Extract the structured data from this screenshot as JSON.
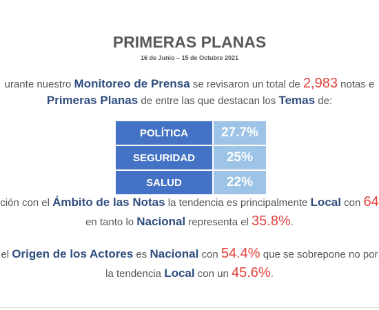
{
  "header": {
    "title": "PRIMERAS PLANAS",
    "subtitle": "16 de Junio – 15 de Octubre 2021"
  },
  "intro": {
    "line1": [
      "urante nuestro ",
      "Monitoreo de Prensa",
      " se revisaron un total de ",
      "2,983",
      " notas e"
    ],
    "line2": [
      "Primeras Planas",
      " de entre las que destacan los ",
      "Temas",
      " de:"
    ]
  },
  "table": {
    "rows": [
      [
        "POLÍTICA",
        "27.7%"
      ],
      [
        "SEGURIDAD",
        "25%"
      ],
      [
        "SALUD",
        "22%"
      ]
    ]
  },
  "ambito": {
    "line1": [
      "ción con el ",
      "Ámbito de las Notas",
      " la tendencia es principalmente ",
      "Local",
      " con ",
      "64"
    ],
    "line2": [
      "en tanto lo ",
      "Nacional",
      " representa el ",
      "35.8%",
      "."
    ]
  },
  "origen": {
    "line1": [
      "el ",
      "Origen de los Actores",
      " es ",
      "Nacional",
      " con ",
      "54.4%",
      " que se sobrepone no por"
    ],
    "line2": [
      "la tendencia ",
      "Local",
      " con un ",
      "45.6%",
      "."
    ]
  }
}
